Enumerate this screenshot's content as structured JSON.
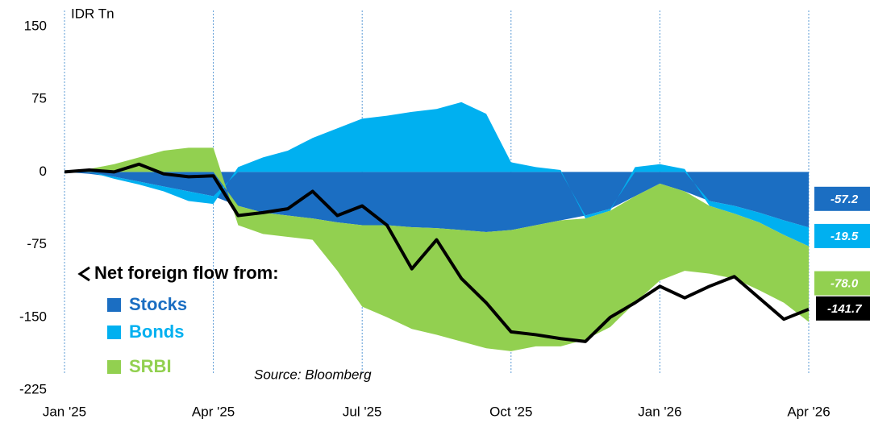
{
  "chart_data": {
    "type": "stacked-area",
    "y_label": "IDR Tn",
    "legend_title": "Net foreign flow from:",
    "source": "Source: Bloomberg",
    "x": [
      0,
      0.5,
      1,
      1.5,
      2,
      2.5,
      3,
      3.5,
      4,
      4.5,
      5,
      5.5,
      6,
      6.5,
      7,
      7.5,
      8,
      8.5,
      9,
      9.5,
      10,
      10.5,
      11,
      11.5,
      12,
      12.5,
      13,
      13.5,
      14,
      14.5,
      15
    ],
    "xlim": [
      0,
      15
    ],
    "xticks": [
      {
        "value": 0,
        "label": "Jan '25"
      },
      {
        "value": 3,
        "label": "Apr '25"
      },
      {
        "value": 6,
        "label": "Jul '25"
      },
      {
        "value": 9,
        "label": "Oct '25"
      },
      {
        "value": 12,
        "label": "Jan '26"
      },
      {
        "value": 15,
        "label": "Apr '26"
      }
    ],
    "ylim": [
      -225,
      150
    ],
    "yticks": [
      -225,
      -150,
      -75,
      0,
      75,
      150
    ],
    "grid": "x",
    "series": [
      {
        "name": "Stocks",
        "color": "#1b6ec2",
        "values": [
          0,
          -2,
          -5,
          -10,
          -15,
          -20,
          -25,
          -35,
          -42,
          -45,
          -48,
          -52,
          -55,
          -55,
          -57,
          -58,
          -60,
          -62,
          -60,
          -55,
          -50,
          -45,
          -38,
          -25,
          -12,
          -20,
          -30,
          -35,
          -42,
          -50,
          -57.2
        ],
        "value_labels": {
          "30": "-57.2"
        }
      },
      {
        "name": "Bonds",
        "color": "#00b0f0",
        "values": [
          0,
          0,
          -2,
          -3,
          -5,
          -10,
          -8,
          5,
          15,
          22,
          35,
          45,
          55,
          58,
          62,
          65,
          72,
          60,
          10,
          5,
          2,
          -3,
          -2,
          5,
          8,
          3,
          -5,
          -8,
          -10,
          -15,
          -19.5
        ],
        "value_labels": {
          "30": "-19.5"
        }
      },
      {
        "name": "SRBI",
        "color": "#92d050",
        "values": [
          0,
          3,
          8,
          15,
          22,
          25,
          25,
          -20,
          -22,
          -22,
          -22,
          -50,
          -84,
          -95,
          -105,
          -110,
          -115,
          -120,
          -125,
          -125,
          -130,
          -125,
          -120,
          -110,
          -100,
          -82,
          -70,
          -67,
          -70,
          -70,
          -78.0
        ],
        "value_labels": {
          "30": "-78.0"
        }
      }
    ],
    "net": {
      "color": "#000000",
      "values": [
        0,
        2,
        0,
        8,
        -2,
        -5,
        -4,
        -45,
        -42,
        -38,
        -20,
        -45,
        -35,
        -55,
        -100,
        -70,
        -110,
        -135,
        -165,
        -168,
        -172,
        -175,
        -150,
        -135,
        -118,
        -130,
        -118,
        -108,
        -130,
        -152,
        -141.7
      ],
      "value_labels": {
        "30": "-141.7"
      }
    }
  }
}
